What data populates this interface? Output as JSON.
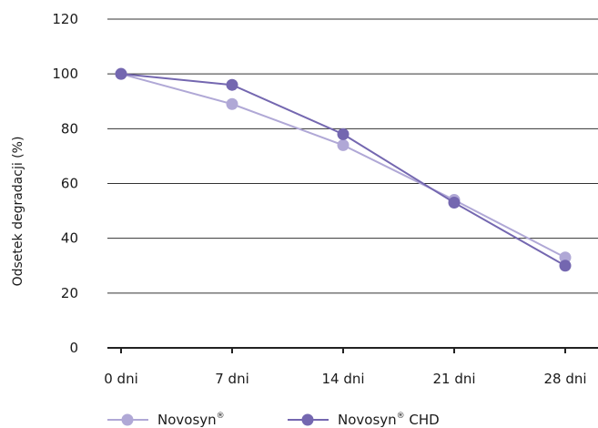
{
  "chart_data": {
    "type": "line",
    "title": "",
    "xlabel": "",
    "ylabel": "Odsetek degradacji (%)",
    "categories": [
      "0 dni",
      "7 dni",
      "14 dni",
      "21 dni",
      "28 dni"
    ],
    "ylim": [
      0,
      120
    ],
    "yticks": [
      0,
      20,
      40,
      60,
      80,
      100,
      120
    ],
    "grid": true,
    "legend_position": "bottom",
    "series": [
      {
        "name": "Novosyn",
        "name_mark": "®",
        "name_suffix": "",
        "color": "#b0a8d6",
        "values": [
          100,
          89,
          74,
          54,
          33
        ]
      },
      {
        "name": "Novosyn",
        "name_mark": "®",
        "name_suffix": " CHD",
        "color": "#7467b0",
        "values": [
          100,
          96,
          78,
          53,
          30
        ]
      }
    ]
  }
}
